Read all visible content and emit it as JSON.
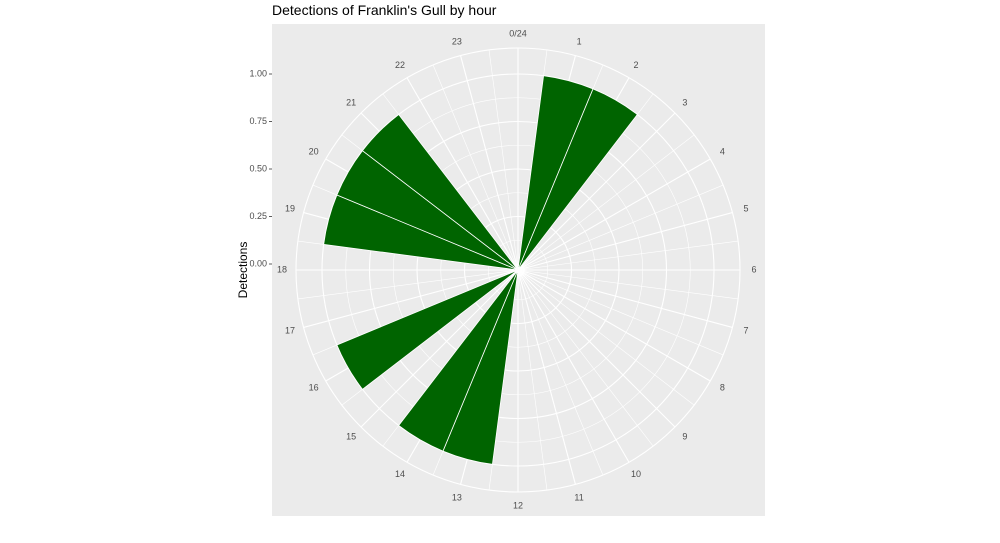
{
  "chart_data": {
    "type": "bar",
    "coord": "polar",
    "title": "Detections of Franklin's Gull by hour",
    "xlabel": "",
    "ylabel": "Detections",
    "categories": [
      "0/24",
      "1",
      "2",
      "3",
      "4",
      "5",
      "6",
      "7",
      "8",
      "9",
      "10",
      "11",
      "12",
      "13",
      "14",
      "15",
      "16",
      "17",
      "18",
      "19",
      "20",
      "21",
      "22",
      "23"
    ],
    "hours": [
      0,
      1,
      2,
      3,
      4,
      5,
      6,
      7,
      8,
      9,
      10,
      11,
      12,
      13,
      14,
      15,
      16,
      17,
      18,
      19,
      20,
      21,
      22,
      23
    ],
    "values": [
      0,
      1,
      1,
      0,
      0,
      0,
      0,
      0,
      0,
      0,
      0,
      0,
      0,
      1,
      1,
      0,
      1,
      0,
      0,
      1,
      1,
      1,
      0,
      0
    ],
    "bar_color": "#006400",
    "ylim": [
      0,
      1
    ],
    "yticks": [
      0.0,
      0.25,
      0.5,
      0.75,
      1.0
    ],
    "ytick_labels": [
      "0.00",
      "0.25",
      "0.50",
      "0.75",
      "1.00"
    ],
    "grid": true,
    "legend": "none"
  }
}
